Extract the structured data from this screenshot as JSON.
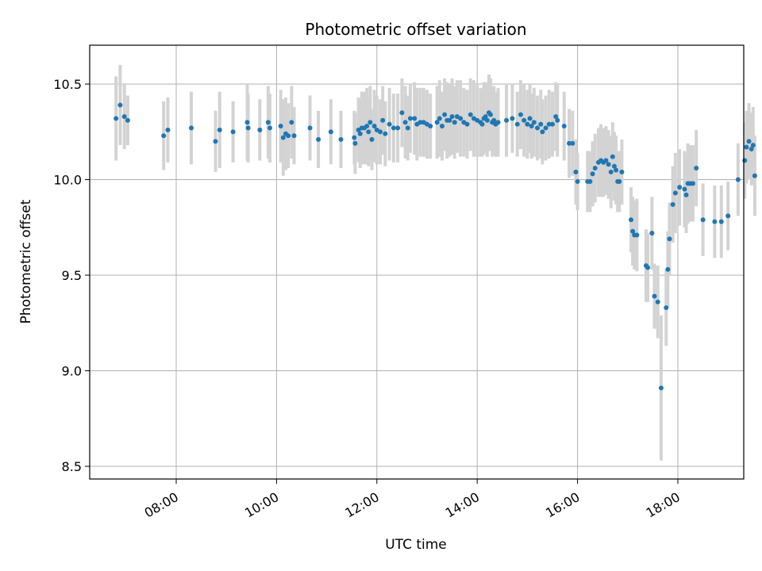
{
  "chart_data": {
    "type": "scatter",
    "title": "Photometric offset variation",
    "xlabel": "UTC time",
    "ylabel": "Photometric offset",
    "x_is_time": true,
    "xlim": [
      "06:30",
      "19:30"
    ],
    "ylim": [
      8.42,
      10.7
    ],
    "x_ticks": [
      "08:00",
      "10:00",
      "12:00",
      "14:00",
      "16:00",
      "18:00"
    ],
    "y_ticks": [
      8.5,
      9.0,
      9.5,
      10.0,
      10.5
    ],
    "grid": true,
    "legend": "none",
    "colors": {
      "point": "#1f77b4",
      "errorbar": "#d3d3d3",
      "grid": "#b0b0b0",
      "axes": "#000000"
    },
    "series": [
      {
        "points": [
          {
            "t": "06:48",
            "y": 10.32,
            "err": 0.22
          },
          {
            "t": "06:53",
            "y": 10.39,
            "err": 0.21
          },
          {
            "t": "06:58",
            "y": 10.33,
            "err": 0.17
          },
          {
            "t": "07:02",
            "y": 10.31,
            "err": 0.13
          },
          {
            "t": "07:45",
            "y": 10.23,
            "err": 0.18
          },
          {
            "t": "07:50",
            "y": 10.26,
            "err": 0.17
          },
          {
            "t": "08:18",
            "y": 10.27,
            "err": 0.19
          },
          {
            "t": "08:47",
            "y": 10.2,
            "err": 0.16
          },
          {
            "t": "08:52",
            "y": 10.26,
            "err": 0.2
          },
          {
            "t": "09:08",
            "y": 10.25,
            "err": 0.16
          },
          {
            "t": "09:25",
            "y": 10.3,
            "err": 0.2
          },
          {
            "t": "09:26",
            "y": 10.27,
            "err": 0.18
          },
          {
            "t": "09:40",
            "y": 10.26,
            "err": 0.16
          },
          {
            "t": "09:50",
            "y": 10.3,
            "err": 0.19
          },
          {
            "t": "09:52",
            "y": 10.27,
            "err": 0.18
          },
          {
            "t": "10:05",
            "y": 10.28,
            "err": 0.19
          },
          {
            "t": "10:08",
            "y": 10.22,
            "err": 0.2
          },
          {
            "t": "10:11",
            "y": 10.24,
            "err": 0.19
          },
          {
            "t": "10:14",
            "y": 10.23,
            "err": 0.17
          },
          {
            "t": "10:18",
            "y": 10.3,
            "err": 0.19
          },
          {
            "t": "10:21",
            "y": 10.23,
            "err": 0.15
          },
          {
            "t": "10:40",
            "y": 10.27,
            "err": 0.17
          },
          {
            "t": "10:50",
            "y": 10.21,
            "err": 0.15
          },
          {
            "t": "11:05",
            "y": 10.25,
            "err": 0.17
          },
          {
            "t": "11:17",
            "y": 10.21,
            "err": 0.15
          },
          {
            "t": "11:33",
            "y": 10.22,
            "err": 0.14
          },
          {
            "t": "11:34",
            "y": 10.19,
            "err": 0.16
          },
          {
            "t": "11:38",
            "y": 10.26,
            "err": 0.17
          },
          {
            "t": "11:40",
            "y": 10.24,
            "err": 0.18
          },
          {
            "t": "11:42",
            "y": 10.27,
            "err": 0.19
          },
          {
            "t": "11:45",
            "y": 10.27,
            "err": 0.19
          },
          {
            "t": "11:48",
            "y": 10.28,
            "err": 0.2
          },
          {
            "t": "11:50",
            "y": 10.25,
            "err": 0.18
          },
          {
            "t": "11:52",
            "y": 10.3,
            "err": 0.19
          },
          {
            "t": "11:54",
            "y": 10.21,
            "err": 0.16
          },
          {
            "t": "11:57",
            "y": 10.28,
            "err": 0.19
          },
          {
            "t": "12:00",
            "y": 10.26,
            "err": 0.18
          },
          {
            "t": "12:04",
            "y": 10.25,
            "err": 0.17
          },
          {
            "t": "12:07",
            "y": 10.31,
            "err": 0.18
          },
          {
            "t": "12:10",
            "y": 10.24,
            "err": 0.17
          },
          {
            "t": "12:15",
            "y": 10.29,
            "err": 0.19
          },
          {
            "t": "12:20",
            "y": 10.27,
            "err": 0.18
          },
          {
            "t": "12:25",
            "y": 10.27,
            "err": 0.18
          },
          {
            "t": "12:30",
            "y": 10.35,
            "err": 0.18
          },
          {
            "t": "12:34",
            "y": 10.3,
            "err": 0.19
          },
          {
            "t": "12:37",
            "y": 10.27,
            "err": 0.17
          },
          {
            "t": "12:40",
            "y": 10.32,
            "err": 0.18
          },
          {
            "t": "12:45",
            "y": 10.32,
            "err": 0.19
          },
          {
            "t": "12:48",
            "y": 10.29,
            "err": 0.19
          },
          {
            "t": "12:52",
            "y": 10.3,
            "err": 0.18
          },
          {
            "t": "12:56",
            "y": 10.3,
            "err": 0.18
          },
          {
            "t": "13:00",
            "y": 10.29,
            "err": 0.18
          },
          {
            "t": "13:04",
            "y": 10.28,
            "err": 0.17
          },
          {
            "t": "13:12",
            "y": 10.3,
            "err": 0.19
          },
          {
            "t": "13:15",
            "y": 10.32,
            "err": 0.2
          },
          {
            "t": "13:18",
            "y": 10.28,
            "err": 0.18
          },
          {
            "t": "13:21",
            "y": 10.34,
            "err": 0.19
          },
          {
            "t": "13:24",
            "y": 10.31,
            "err": 0.2
          },
          {
            "t": "13:27",
            "y": 10.31,
            "err": 0.19
          },
          {
            "t": "13:30",
            "y": 10.33,
            "err": 0.2
          },
          {
            "t": "13:33",
            "y": 10.3,
            "err": 0.19
          },
          {
            "t": "13:36",
            "y": 10.33,
            "err": 0.19
          },
          {
            "t": "13:40",
            "y": 10.32,
            "err": 0.2
          },
          {
            "t": "13:44",
            "y": 10.3,
            "err": 0.18
          },
          {
            "t": "13:48",
            "y": 10.29,
            "err": 0.18
          },
          {
            "t": "13:52",
            "y": 10.34,
            "err": 0.19
          },
          {
            "t": "13:56",
            "y": 10.32,
            "err": 0.2
          },
          {
            "t": "14:00",
            "y": 10.31,
            "err": 0.19
          },
          {
            "t": "14:04",
            "y": 10.3,
            "err": 0.18
          },
          {
            "t": "14:06",
            "y": 10.29,
            "err": 0.17
          },
          {
            "t": "14:08",
            "y": 10.32,
            "err": 0.19
          },
          {
            "t": "14:10",
            "y": 10.33,
            "err": 0.18
          },
          {
            "t": "14:12",
            "y": 10.31,
            "err": 0.19
          },
          {
            "t": "14:14",
            "y": 10.35,
            "err": 0.2
          },
          {
            "t": "14:16",
            "y": 10.34,
            "err": 0.19
          },
          {
            "t": "14:18",
            "y": 10.3,
            "err": 0.18
          },
          {
            "t": "14:20",
            "y": 10.31,
            "err": 0.18
          },
          {
            "t": "14:22",
            "y": 10.29,
            "err": 0.17
          },
          {
            "t": "14:25",
            "y": 10.3,
            "err": 0.18
          },
          {
            "t": "14:35",
            "y": 10.31,
            "err": 0.19
          },
          {
            "t": "14:42",
            "y": 10.32,
            "err": 0.18
          },
          {
            "t": "14:48",
            "y": 10.29,
            "err": 0.17
          },
          {
            "t": "14:52",
            "y": 10.34,
            "err": 0.18
          },
          {
            "t": "14:56",
            "y": 10.31,
            "err": 0.19
          },
          {
            "t": "15:00",
            "y": 10.29,
            "err": 0.18
          },
          {
            "t": "15:03",
            "y": 10.32,
            "err": 0.18
          },
          {
            "t": "15:05",
            "y": 10.28,
            "err": 0.17
          },
          {
            "t": "15:08",
            "y": 10.3,
            "err": 0.18
          },
          {
            "t": "15:12",
            "y": 10.27,
            "err": 0.17
          },
          {
            "t": "15:16",
            "y": 10.29,
            "err": 0.18
          },
          {
            "t": "15:18",
            "y": 10.25,
            "err": 0.17
          },
          {
            "t": "15:22",
            "y": 10.27,
            "err": 0.17
          },
          {
            "t": "15:26",
            "y": 10.29,
            "err": 0.18
          },
          {
            "t": "15:30",
            "y": 10.29,
            "err": 0.17
          },
          {
            "t": "15:34",
            "y": 10.33,
            "err": 0.18
          },
          {
            "t": "15:36",
            "y": 10.31,
            "err": 0.19
          },
          {
            "t": "15:44",
            "y": 10.28,
            "err": 0.18
          },
          {
            "t": "15:50",
            "y": 10.19,
            "err": 0.18
          },
          {
            "t": "15:54",
            "y": 10.19,
            "err": 0.17
          },
          {
            "t": "15:58",
            "y": 10.04,
            "err": 0.17
          },
          {
            "t": "16:00",
            "y": 9.99,
            "err": 0.15
          },
          {
            "t": "16:12",
            "y": 9.99,
            "err": 0.16
          },
          {
            "t": "16:15",
            "y": 9.99,
            "err": 0.16
          },
          {
            "t": "16:18",
            "y": 10.03,
            "err": 0.17
          },
          {
            "t": "16:21",
            "y": 10.06,
            "err": 0.18
          },
          {
            "t": "16:25",
            "y": 10.09,
            "err": 0.18
          },
          {
            "t": "16:28",
            "y": 10.1,
            "err": 0.19
          },
          {
            "t": "16:31",
            "y": 10.09,
            "err": 0.18
          },
          {
            "t": "16:34",
            "y": 10.1,
            "err": 0.18
          },
          {
            "t": "16:37",
            "y": 10.08,
            "err": 0.18
          },
          {
            "t": "16:40",
            "y": 10.04,
            "err": 0.19
          },
          {
            "t": "16:42",
            "y": 10.12,
            "err": 0.18
          },
          {
            "t": "16:44",
            "y": 10.07,
            "err": 0.18
          },
          {
            "t": "16:46",
            "y": 10.05,
            "err": 0.18
          },
          {
            "t": "16:48",
            "y": 9.99,
            "err": 0.16
          },
          {
            "t": "16:50",
            "y": 9.99,
            "err": 0.16
          },
          {
            "t": "16:53",
            "y": 10.04,
            "err": 0.17
          },
          {
            "t": "17:04",
            "y": 9.79,
            "err": 0.17
          },
          {
            "t": "17:06",
            "y": 9.73,
            "err": 0.18
          },
          {
            "t": "17:08",
            "y": 9.71,
            "err": 0.18
          },
          {
            "t": "17:11",
            "y": 9.71,
            "err": 0.19
          },
          {
            "t": "17:22",
            "y": 9.55,
            "err": 0.19
          },
          {
            "t": "17:24",
            "y": 9.54,
            "err": 0.18
          },
          {
            "t": "17:29",
            "y": 9.72,
            "err": 0.19
          },
          {
            "t": "17:32",
            "y": 9.39,
            "err": 0.17
          },
          {
            "t": "17:36",
            "y": 9.36,
            "err": 0.19
          },
          {
            "t": "17:40",
            "y": 8.91,
            "err": 0.38
          },
          {
            "t": "17:46",
            "y": 9.33,
            "err": 0.2
          },
          {
            "t": "17:48",
            "y": 9.53,
            "err": 0.2
          },
          {
            "t": "17:50",
            "y": 9.69,
            "err": 0.19
          },
          {
            "t": "17:54",
            "y": 9.87,
            "err": 0.2
          },
          {
            "t": "17:57",
            "y": 9.93,
            "err": 0.21
          },
          {
            "t": "18:02",
            "y": 9.96,
            "err": 0.2
          },
          {
            "t": "18:08",
            "y": 9.95,
            "err": 0.2
          },
          {
            "t": "18:10",
            "y": 9.92,
            "err": 0.2
          },
          {
            "t": "18:12",
            "y": 9.98,
            "err": 0.21
          },
          {
            "t": "18:15",
            "y": 9.98,
            "err": 0.2
          },
          {
            "t": "18:18",
            "y": 9.98,
            "err": 0.2
          },
          {
            "t": "18:22",
            "y": 10.06,
            "err": 0.2
          },
          {
            "t": "18:30",
            "y": 9.79,
            "err": 0.19
          },
          {
            "t": "18:44",
            "y": 9.78,
            "err": 0.19
          },
          {
            "t": "18:52",
            "y": 9.78,
            "err": 0.19
          },
          {
            "t": "19:00",
            "y": 9.81,
            "err": 0.18
          },
          {
            "t": "19:12",
            "y": 10.0,
            "err": 0.19
          },
          {
            "t": "19:20",
            "y": 10.1,
            "err": 0.2
          },
          {
            "t": "19:22",
            "y": 10.17,
            "err": 0.19
          },
          {
            "t": "19:25",
            "y": 10.2,
            "err": 0.2
          },
          {
            "t": "19:28",
            "y": 10.16,
            "err": 0.19
          },
          {
            "t": "19:30",
            "y": 10.18,
            "err": 0.2
          },
          {
            "t": "19:32",
            "y": 10.02,
            "err": 0.21
          }
        ]
      }
    ]
  }
}
